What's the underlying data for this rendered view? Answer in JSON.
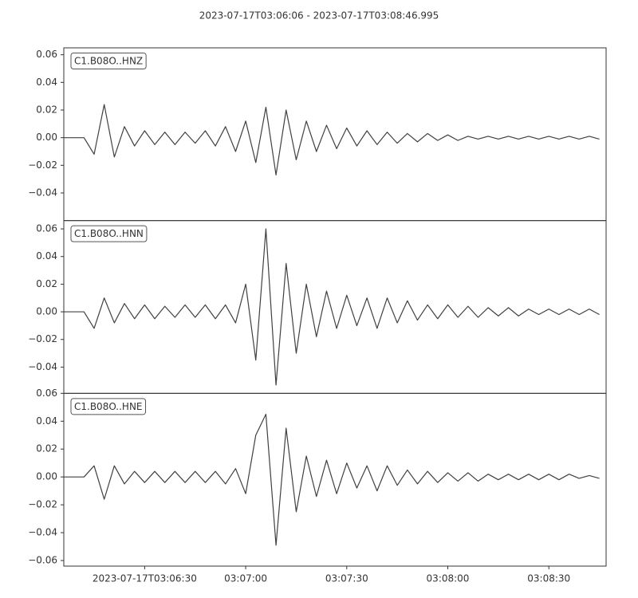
{
  "title": "2023-07-17T03:06:06  -  2023-07-17T03:08:46.995",
  "chart_data": [
    {
      "type": "line",
      "label": "C1.B08O..HNZ",
      "color": "#404040",
      "xlim": [
        "2023-07-17T03:06:06",
        "2023-07-17T03:08:46.995"
      ],
      "ylim": [
        -0.06,
        0.065
      ],
      "yticks": [
        0.06,
        0.04,
        0.02,
        {
          "value": 0,
          "label": "0.00"
        },
        {
          "value": -0.02,
          "label": "−0.02"
        },
        {
          "value": -0.04,
          "label": "−0.04"
        }
      ],
      "x": [
        "2023-07-17T03:06:06",
        "2023-07-17T03:06:09",
        "2023-07-17T03:06:12",
        "2023-07-17T03:06:15",
        "2023-07-17T03:06:18",
        "2023-07-17T03:06:21",
        "2023-07-17T03:06:24",
        "2023-07-17T03:06:27",
        "2023-07-17T03:06:30",
        "2023-07-17T03:06:33",
        "2023-07-17T03:06:36",
        "2023-07-17T03:06:39",
        "2023-07-17T03:06:42",
        "2023-07-17T03:06:45",
        "2023-07-17T03:06:48",
        "2023-07-17T03:06:51",
        "2023-07-17T03:06:54",
        "2023-07-17T03:06:57",
        "2023-07-17T03:07:00",
        "2023-07-17T03:07:03",
        "2023-07-17T03:07:06",
        "2023-07-17T03:07:09",
        "2023-07-17T03:07:12",
        "2023-07-17T03:07:15",
        "2023-07-17T03:07:18",
        "2023-07-17T03:07:21",
        "2023-07-17T03:07:24",
        "2023-07-17T03:07:27",
        "2023-07-17T03:07:30",
        "2023-07-17T03:07:33",
        "2023-07-17T03:07:36",
        "2023-07-17T03:07:39",
        "2023-07-17T03:07:42",
        "2023-07-17T03:07:45",
        "2023-07-17T03:07:48",
        "2023-07-17T03:07:51",
        "2023-07-17T03:07:54",
        "2023-07-17T03:07:57",
        "2023-07-17T03:08:00",
        "2023-07-17T03:08:03",
        "2023-07-17T03:08:06",
        "2023-07-17T03:08:09",
        "2023-07-17T03:08:12",
        "2023-07-17T03:08:15",
        "2023-07-17T03:08:18",
        "2023-07-17T03:08:21",
        "2023-07-17T03:08:24",
        "2023-07-17T03:08:27",
        "2023-07-17T03:08:30",
        "2023-07-17T03:08:33",
        "2023-07-17T03:08:36",
        "2023-07-17T03:08:39",
        "2023-07-17T03:08:42",
        "2023-07-17T03:08:45"
      ],
      "values": [
        0,
        0,
        0,
        -0.012,
        0.024,
        -0.014,
        0.008,
        -0.006,
        0.005,
        -0.005,
        0.004,
        -0.005,
        0.004,
        -0.004,
        0.005,
        -0.006,
        0.008,
        -0.01,
        0.012,
        -0.018,
        0.022,
        -0.027,
        0.02,
        -0.016,
        0.012,
        -0.01,
        0.009,
        -0.008,
        0.007,
        -0.006,
        0.005,
        -0.005,
        0.004,
        -0.004,
        0.003,
        -0.003,
        0.003,
        -0.002,
        0.002,
        -0.002,
        0.001,
        -0.001,
        0.001,
        -0.001,
        0.001,
        -0.001,
        0.001,
        -0.001,
        0.001,
        -0.001,
        0.001,
        -0.001,
        0.001,
        -0.001
      ]
    },
    {
      "type": "line",
      "label": "C1.B08O..HNN",
      "color": "#404040",
      "xlim": [
        "2023-07-17T03:06:06",
        "2023-07-17T03:08:46.995"
      ],
      "ylim": [
        -0.059,
        0.066
      ],
      "yticks": [
        0.06,
        0.04,
        0.02,
        {
          "value": 0,
          "label": "0.00"
        },
        {
          "value": -0.02,
          "label": "−0.02"
        },
        {
          "value": -0.04,
          "label": "−0.04"
        }
      ],
      "x": [
        "2023-07-17T03:06:06",
        "2023-07-17T03:06:09",
        "2023-07-17T03:06:12",
        "2023-07-17T03:06:15",
        "2023-07-17T03:06:18",
        "2023-07-17T03:06:21",
        "2023-07-17T03:06:24",
        "2023-07-17T03:06:27",
        "2023-07-17T03:06:30",
        "2023-07-17T03:06:33",
        "2023-07-17T03:06:36",
        "2023-07-17T03:06:39",
        "2023-07-17T03:06:42",
        "2023-07-17T03:06:45",
        "2023-07-17T03:06:48",
        "2023-07-17T03:06:51",
        "2023-07-17T03:06:54",
        "2023-07-17T03:06:57",
        "2023-07-17T03:07:00",
        "2023-07-17T03:07:03",
        "2023-07-17T03:07:06",
        "2023-07-17T03:07:09",
        "2023-07-17T03:07:12",
        "2023-07-17T03:07:15",
        "2023-07-17T03:07:18",
        "2023-07-17T03:07:21",
        "2023-07-17T03:07:24",
        "2023-07-17T03:07:27",
        "2023-07-17T03:07:30",
        "2023-07-17T03:07:33",
        "2023-07-17T03:07:36",
        "2023-07-17T03:07:39",
        "2023-07-17T03:07:42",
        "2023-07-17T03:07:45",
        "2023-07-17T03:07:48",
        "2023-07-17T03:07:51",
        "2023-07-17T03:07:54",
        "2023-07-17T03:07:57",
        "2023-07-17T03:08:00",
        "2023-07-17T03:08:03",
        "2023-07-17T03:08:06",
        "2023-07-17T03:08:09",
        "2023-07-17T03:08:12",
        "2023-07-17T03:08:15",
        "2023-07-17T03:08:18",
        "2023-07-17T03:08:21",
        "2023-07-17T03:08:24",
        "2023-07-17T03:08:27",
        "2023-07-17T03:08:30",
        "2023-07-17T03:08:33",
        "2023-07-17T03:08:36",
        "2023-07-17T03:08:39",
        "2023-07-17T03:08:42",
        "2023-07-17T03:08:45"
      ],
      "values": [
        0,
        0,
        0,
        -0.012,
        0.01,
        -0.008,
        0.006,
        -0.005,
        0.005,
        -0.005,
        0.004,
        -0.004,
        0.005,
        -0.004,
        0.005,
        -0.005,
        0.005,
        -0.008,
        0.02,
        -0.035,
        0.06,
        -0.053,
        0.035,
        -0.03,
        0.02,
        -0.018,
        0.015,
        -0.012,
        0.012,
        -0.01,
        0.01,
        -0.012,
        0.01,
        -0.008,
        0.008,
        -0.006,
        0.005,
        -0.005,
        0.005,
        -0.004,
        0.004,
        -0.004,
        0.003,
        -0.003,
        0.003,
        -0.003,
        0.002,
        -0.002,
        0.002,
        -0.002,
        0.002,
        -0.002,
        0.002,
        -0.002
      ]
    },
    {
      "type": "line",
      "label": "C1.B08O..HNE",
      "color": "#404040",
      "xlim": [
        "2023-07-17T03:06:06",
        "2023-07-17T03:08:46.995"
      ],
      "ylim": [
        -0.064,
        0.06
      ],
      "yticks": [
        0.06,
        0.04,
        0.02,
        {
          "value": 0,
          "label": "0.00"
        },
        {
          "value": -0.02,
          "label": "−0.02"
        },
        {
          "value": -0.04,
          "label": "−0.04"
        },
        {
          "value": -0.06,
          "label": "−0.06"
        }
      ],
      "xticks": [
        "2023-07-17T03:06:30",
        {
          "value": "2023-07-17T03:07:00",
          "label": "03:07:00"
        },
        {
          "value": "2023-07-17T03:07:30",
          "label": "03:07:30"
        },
        {
          "value": "2023-07-17T03:08:00",
          "label": "03:08:00"
        },
        {
          "value": "2023-07-17T03:08:30",
          "label": "03:08:30"
        }
      ],
      "x": [
        "2023-07-17T03:06:06",
        "2023-07-17T03:06:09",
        "2023-07-17T03:06:12",
        "2023-07-17T03:06:15",
        "2023-07-17T03:06:18",
        "2023-07-17T03:06:21",
        "2023-07-17T03:06:24",
        "2023-07-17T03:06:27",
        "2023-07-17T03:06:30",
        "2023-07-17T03:06:33",
        "2023-07-17T03:06:36",
        "2023-07-17T03:06:39",
        "2023-07-17T03:06:42",
        "2023-07-17T03:06:45",
        "2023-07-17T03:06:48",
        "2023-07-17T03:06:51",
        "2023-07-17T03:06:54",
        "2023-07-17T03:06:57",
        "2023-07-17T03:07:00",
        "2023-07-17T03:07:03",
        "2023-07-17T03:07:06",
        "2023-07-17T03:07:09",
        "2023-07-17T03:07:12",
        "2023-07-17T03:07:15",
        "2023-07-17T03:07:18",
        "2023-07-17T03:07:21",
        "2023-07-17T03:07:24",
        "2023-07-17T03:07:27",
        "2023-07-17T03:07:30",
        "2023-07-17T03:07:33",
        "2023-07-17T03:07:36",
        "2023-07-17T03:07:39",
        "2023-07-17T03:07:42",
        "2023-07-17T03:07:45",
        "2023-07-17T03:07:48",
        "2023-07-17T03:07:51",
        "2023-07-17T03:07:54",
        "2023-07-17T03:07:57",
        "2023-07-17T03:08:00",
        "2023-07-17T03:08:03",
        "2023-07-17T03:08:06",
        "2023-07-17T03:08:09",
        "2023-07-17T03:08:12",
        "2023-07-17T03:08:15",
        "2023-07-17T03:08:18",
        "2023-07-17T03:08:21",
        "2023-07-17T03:08:24",
        "2023-07-17T03:08:27",
        "2023-07-17T03:08:30",
        "2023-07-17T03:08:33",
        "2023-07-17T03:08:36",
        "2023-07-17T03:08:39",
        "2023-07-17T03:08:42",
        "2023-07-17T03:08:45"
      ],
      "values": [
        0,
        0,
        0,
        0.008,
        -0.016,
        0.008,
        -0.005,
        0.004,
        -0.004,
        0.004,
        -0.004,
        0.004,
        -0.004,
        0.004,
        -0.004,
        0.004,
        -0.005,
        0.006,
        -0.012,
        0.03,
        0.045,
        -0.049,
        0.035,
        -0.025,
        0.015,
        -0.014,
        0.012,
        -0.012,
        0.01,
        -0.008,
        0.008,
        -0.01,
        0.008,
        -0.006,
        0.005,
        -0.005,
        0.004,
        -0.004,
        0.003,
        -0.003,
        0.003,
        -0.003,
        0.002,
        -0.002,
        0.002,
        -0.002,
        0.002,
        -0.002,
        0.002,
        -0.002,
        0.002,
        -0.001,
        0.001,
        -0.001
      ]
    }
  ]
}
